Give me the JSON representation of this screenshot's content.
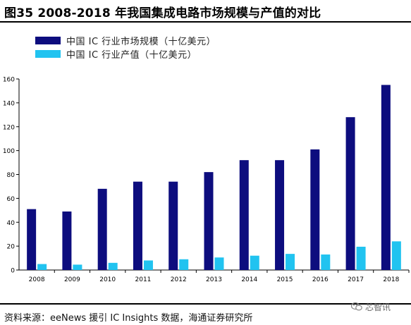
{
  "title": "图35 2008-2018 年我国集成电路市场规模与产值的对比",
  "source": "资料来源：eeNews 援引 IC Insights 数据，海通证券研究所",
  "watermark": "芯智讯",
  "watermark_icon": "wechat-icon",
  "colors": {
    "market": "#0d0d7e",
    "output": "#21c3f0"
  },
  "chart_data": {
    "type": "bar",
    "title": "",
    "xlabel": "",
    "ylabel": "",
    "categories": [
      "2008",
      "2009",
      "2010",
      "2011",
      "2012",
      "2013",
      "2014",
      "2015",
      "2016",
      "2017",
      "2018"
    ],
    "series": [
      {
        "name": "中国 IC 行业市场规模（十亿美元）",
        "values": [
          51,
          49,
          68,
          74,
          74,
          82,
          92,
          92,
          101,
          128,
          155
        ]
      },
      {
        "name": "中国 IC 行业产值（十亿美元）",
        "values": [
          5,
          4.5,
          6,
          8,
          9,
          10.5,
          12,
          13.5,
          13,
          19.5,
          24
        ]
      }
    ],
    "ylim": [
      0,
      160
    ],
    "yticks": [
      0,
      20,
      40,
      60,
      80,
      100,
      120,
      140,
      160
    ],
    "grid": false,
    "legend_position": "top-left"
  }
}
